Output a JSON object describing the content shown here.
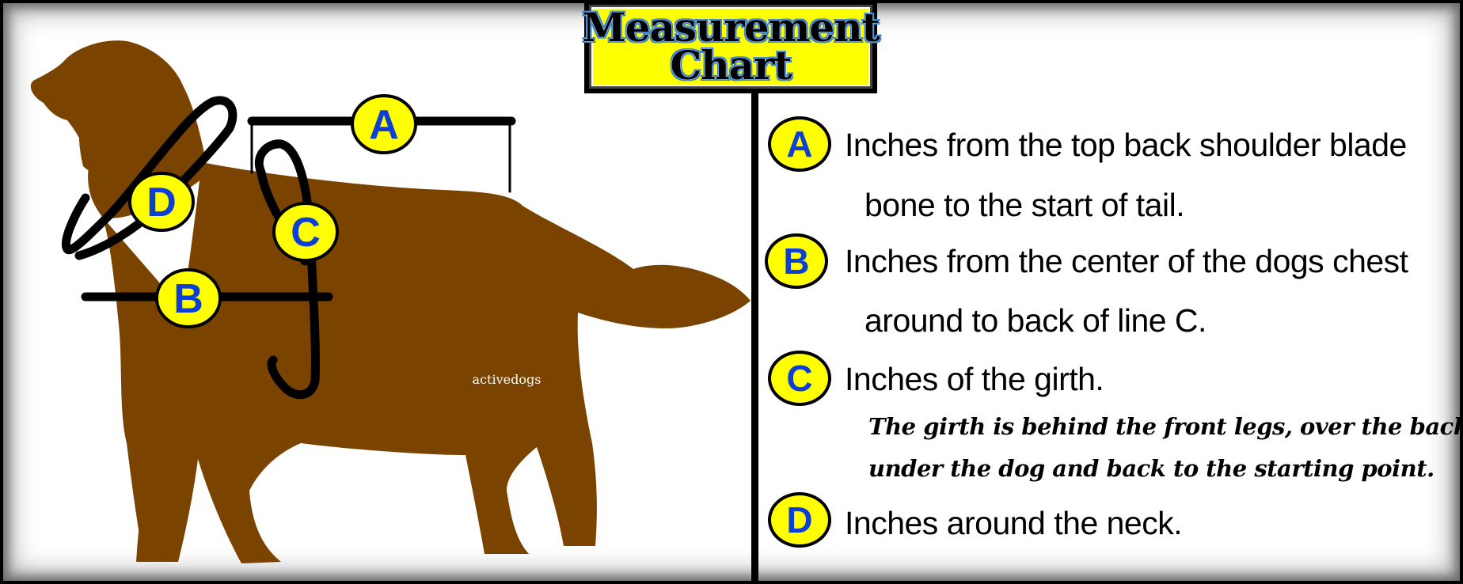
{
  "title": {
    "line1": "Measurement",
    "line2": "Chart"
  },
  "watermark": "activedogs",
  "colors": {
    "dog": "#7a4300",
    "badge_fill": "#ffff00",
    "badge_letter": "#0c3fd6",
    "title_bg": "#ffff00",
    "title_outline": "#2b7bd6"
  },
  "diagram_badges": {
    "a": "A",
    "b": "B",
    "c": "C",
    "d": "D"
  },
  "legend": [
    {
      "letter": "A",
      "line1": "Inches from the top back shoulder blade",
      "line2": "bone to the start of tail."
    },
    {
      "letter": "B",
      "line1": "Inches from the center of the dogs chest",
      "line2": "around to back of line C."
    },
    {
      "letter": "C",
      "line1": "Inches of the girth.",
      "note1": "The girth is behind the front legs, over the back,",
      "note2": "under the dog and back to the starting point."
    },
    {
      "letter": "D",
      "line1": "Inches around the neck."
    }
  ]
}
